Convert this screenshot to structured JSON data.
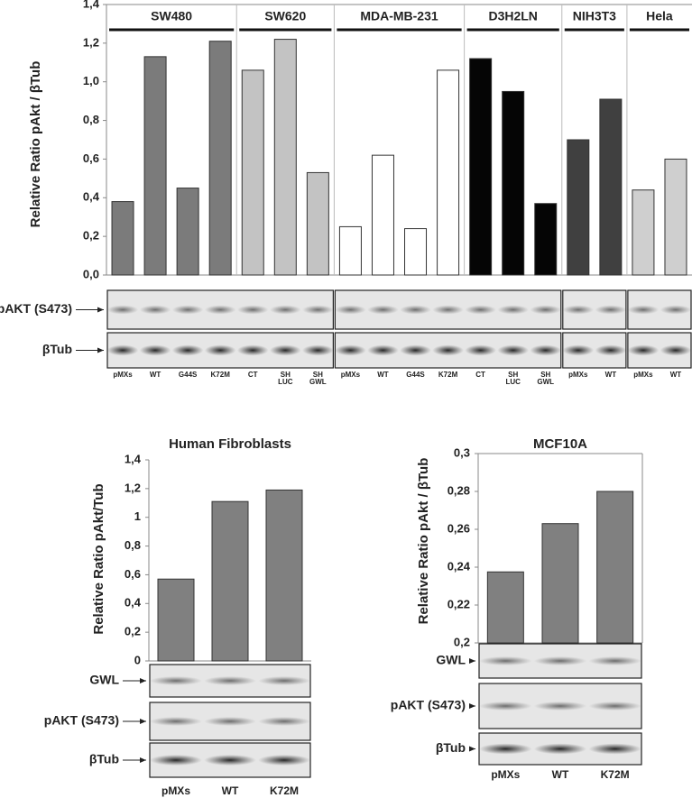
{
  "chart_data": [
    {
      "type": "bar",
      "y_label": "Relative Ratio pAkt / βTub",
      "categories": [
        "pMXs",
        "WT",
        "G44S",
        "K72M",
        "CT",
        "SH LUC",
        "SH GWL",
        "pMXs",
        "WT",
        "G44S",
        "K72M",
        "CT",
        "SH LUC",
        "SH GWL",
        "pMXs",
        "WT",
        "pMXs",
        "WT"
      ],
      "series": [
        {
          "name": "SW480",
          "color": "#7b7b7b",
          "values": [
            0.38,
            1.13,
            0.45,
            1.21,
            null,
            null,
            null,
            null,
            null,
            null,
            null,
            null,
            null,
            null,
            null,
            null,
            null,
            null
          ]
        },
        {
          "name": "SW620",
          "color": "#c3c3c3",
          "values": [
            null,
            null,
            null,
            null,
            1.06,
            1.22,
            0.53,
            null,
            null,
            null,
            null,
            null,
            null,
            null,
            null,
            null,
            null,
            null
          ]
        },
        {
          "name": "MDA-MB-231",
          "color": "#ffffff",
          "values": [
            null,
            null,
            null,
            null,
            null,
            null,
            null,
            0.25,
            0.62,
            0.24,
            1.06,
            null,
            null,
            null,
            null,
            null,
            null,
            null
          ]
        },
        {
          "name": "D3H2LN",
          "color": "#050505",
          "values": [
            null,
            null,
            null,
            null,
            null,
            null,
            null,
            null,
            null,
            null,
            null,
            1.12,
            0.95,
            0.37,
            null,
            null,
            null,
            null
          ]
        },
        {
          "name": "NIH3T3",
          "color": "#404040",
          "values": [
            null,
            null,
            null,
            null,
            null,
            null,
            null,
            null,
            null,
            null,
            null,
            null,
            null,
            null,
            0.7,
            0.91,
            null,
            null
          ]
        },
        {
          "name": "Hela",
          "color": "#cfcfcf",
          "values": [
            null,
            null,
            null,
            null,
            null,
            null,
            null,
            null,
            null,
            null,
            null,
            null,
            null,
            null,
            null,
            null,
            0.44,
            0.6
          ]
        }
      ],
      "ylim": [
        0,
        1.4
      ],
      "yticks": [
        {
          "value": 0,
          "label": "0,0"
        },
        {
          "value": 0.2,
          "label": "0,2"
        },
        {
          "value": 0.4,
          "label": "0,4"
        },
        {
          "value": 0.6,
          "label": "0,6"
        },
        {
          "value": 0.8,
          "label": "0,8"
        },
        {
          "value": 1.0,
          "label": "1,0"
        },
        {
          "value": 1.2,
          "label": "1,2"
        },
        {
          "value": 1.4,
          "label": "1,4"
        }
      ],
      "blot_rows": [
        "pAKT (S473)",
        "βTub"
      ]
    },
    {
      "type": "bar",
      "title": "Human Fibroblasts",
      "y_label": "Relative Ratio pAkt/Tub",
      "categories": [
        "pMXs",
        "WT",
        "K72M"
      ],
      "values": [
        0.57,
        1.11,
        1.19
      ],
      "color": "#808080",
      "ylim": [
        0,
        1.4
      ],
      "yticks": [
        0,
        {
          "value": 0.2,
          "label": "0,2"
        },
        {
          "value": 0.4,
          "label": "0,4"
        },
        {
          "value": 0.6,
          "label": "0,6"
        },
        {
          "value": 0.8,
          "label": "0,8"
        },
        1,
        {
          "value": 1.2,
          "label": "1,2"
        },
        {
          "value": 1.4,
          "label": "1,4"
        }
      ],
      "blot_rows": [
        "GWL",
        "pAKT (S473)",
        "βTub"
      ]
    },
    {
      "type": "bar",
      "title": "MCF10A",
      "y_label": "Relative Ratio pAkt / βTub",
      "categories": [
        "pMXs",
        "WT",
        "K72M"
      ],
      "values": [
        0.2375,
        0.263,
        0.28
      ],
      "color": "#808080",
      "ylim": [
        0.2,
        0.3
      ],
      "yticks": [
        {
          "value": 0.2,
          "label": "0,2"
        },
        {
          "value": 0.22,
          "label": "0,22"
        },
        {
          "value": 0.24,
          "label": "0,24"
        },
        {
          "value": 0.26,
          "label": "0,26"
        },
        {
          "value": 0.28,
          "label": "0,28"
        },
        {
          "value": 0.3,
          "label": "0,3"
        }
      ],
      "blot_rows": [
        "GWL",
        "pAKT (S473)",
        "βTub"
      ]
    }
  ]
}
